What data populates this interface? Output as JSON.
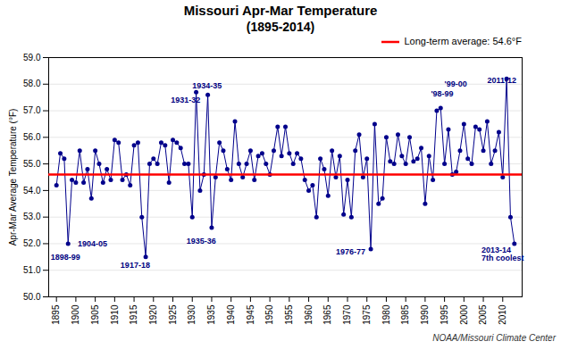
{
  "chart_data": {
    "type": "line",
    "title": "Missouri Apr-Mar Temperature",
    "subtitle": "(1895-2014)",
    "y_label": "Apr-Mar Average Temperature (°F)",
    "caption": "NOAA/Missouri Climate Center",
    "x": [
      1895,
      1896,
      1897,
      1898,
      1899,
      1900,
      1901,
      1902,
      1903,
      1904,
      1905,
      1906,
      1907,
      1908,
      1909,
      1910,
      1911,
      1912,
      1913,
      1914,
      1915,
      1916,
      1917,
      1918,
      1919,
      1920,
      1921,
      1922,
      1923,
      1924,
      1925,
      1926,
      1927,
      1928,
      1929,
      1930,
      1931,
      1932,
      1933,
      1934,
      1935,
      1936,
      1937,
      1938,
      1939,
      1940,
      1941,
      1942,
      1943,
      1944,
      1945,
      1946,
      1947,
      1948,
      1949,
      1950,
      1951,
      1952,
      1953,
      1954,
      1955,
      1956,
      1957,
      1958,
      1959,
      1960,
      1961,
      1962,
      1963,
      1964,
      1965,
      1966,
      1967,
      1968,
      1969,
      1970,
      1971,
      1972,
      1973,
      1974,
      1975,
      1976,
      1977,
      1978,
      1979,
      1980,
      1981,
      1982,
      1983,
      1984,
      1985,
      1986,
      1987,
      1988,
      1989,
      1990,
      1991,
      1992,
      1993,
      1994,
      1995,
      1996,
      1997,
      1998,
      1999,
      2000,
      2001,
      2002,
      2003,
      2004,
      2005,
      2006,
      2007,
      2008,
      2009,
      2010,
      2011,
      2012,
      2013
    ],
    "series": [
      {
        "color": "#00008B",
        "marker": "circle",
        "values": [
          54.2,
          55.4,
          55.2,
          52.0,
          54.4,
          54.3,
          55.5,
          54.3,
          54.8,
          53.7,
          55.5,
          55.0,
          54.3,
          54.8,
          54.4,
          55.9,
          55.8,
          54.4,
          54.6,
          54.2,
          55.7,
          55.8,
          53.0,
          51.5,
          55.0,
          55.2,
          55.0,
          55.8,
          55.7,
          54.3,
          55.9,
          55.8,
          55.6,
          55.0,
          55.0,
          53.0,
          57.7,
          54.0,
          54.6,
          57.6,
          52.6,
          54.5,
          55.8,
          55.5,
          54.8,
          54.4,
          56.6,
          55.0,
          54.5,
          55.0,
          55.5,
          54.4,
          55.3,
          55.4,
          55.0,
          54.6,
          55.5,
          56.4,
          55.3,
          56.4,
          55.4,
          55.0,
          55.4,
          55.2,
          54.4,
          54.0,
          54.2,
          53.0,
          55.2,
          54.8,
          53.8,
          55.5,
          54.5,
          55.3,
          53.1,
          54.4,
          53.0,
          55.5,
          56.1,
          54.5,
          55.2,
          51.8,
          56.5,
          53.5,
          53.7,
          56.0,
          55.1,
          55.0,
          56.1,
          55.3,
          55.0,
          56.0,
          55.1,
          55.2,
          55.6,
          53.5,
          55.3,
          54.4,
          57.0,
          57.1,
          55.0,
          56.3,
          54.6,
          54.7,
          55.5,
          56.5,
          55.2,
          55.0,
          56.4,
          56.3,
          55.5,
          56.6,
          55.0,
          55.5,
          56.2,
          54.5,
          58.2,
          53.0,
          52.0
        ]
      }
    ],
    "hlines": [
      {
        "y": 54.6,
        "name": "Long-term average: 54.6°F",
        "color": "#FF0000"
      }
    ],
    "legend": "upper right",
    "xlim": [
      1893,
      2015
    ],
    "xticks": [
      1895,
      1900,
      1905,
      1910,
      1915,
      1920,
      1925,
      1930,
      1935,
      1940,
      1945,
      1950,
      1955,
      1960,
      1965,
      1970,
      1975,
      1980,
      1985,
      1990,
      1995,
      2000,
      2005,
      2010
    ],
    "ylim": [
      50.0,
      59.0
    ],
    "yticks": [
      {
        "value": 50,
        "label": "50.0"
      },
      {
        "value": 51,
        "label": "51.0"
      },
      {
        "value": 52,
        "label": "52.0"
      },
      {
        "value": 53,
        "label": "53.0"
      },
      {
        "value": 54,
        "label": "54.0"
      },
      {
        "value": 55,
        "label": "55.0"
      },
      {
        "value": 56,
        "label": "56.0"
      },
      {
        "value": 57,
        "label": "57.0"
      },
      {
        "value": 58,
        "label": "58.0"
      },
      {
        "value": 59,
        "label": "59.0"
      }
    ],
    "grid": true,
    "annotations": [
      {
        "text": "1898-99",
        "x": 1893.5,
        "y": 51.4,
        "color": "navy"
      },
      {
        "text": "1904-05",
        "x": 1900.5,
        "y": 51.9,
        "color": "navy"
      },
      {
        "text": "1917-18",
        "x": 1911.5,
        "y": 51.1,
        "color": "navy"
      },
      {
        "text": "1931-32",
        "x": 1924.5,
        "y": 57.3,
        "color": "navy"
      },
      {
        "text": "1934-35",
        "x": 1930,
        "y": 57.85,
        "color": "navy"
      },
      {
        "text": "1935-36",
        "x": 1928.5,
        "y": 52.0,
        "color": "navy"
      },
      {
        "text": "1976-77",
        "x": 1967,
        "y": 51.6,
        "color": "navy"
      },
      {
        "text": "'98-99",
        "x": 1991.5,
        "y": 57.55,
        "color": "navy"
      },
      {
        "text": "'99-00",
        "x": 1995,
        "y": 57.55,
        "color": "navy"
      },
      {
        "text": "2011-12",
        "x": 2006,
        "y": 58.05,
        "color": "navy"
      },
      {
        "text": "2013-14\n7th coolest",
        "x": 2004.5,
        "y": 51.35,
        "color": "navy"
      }
    ]
  }
}
